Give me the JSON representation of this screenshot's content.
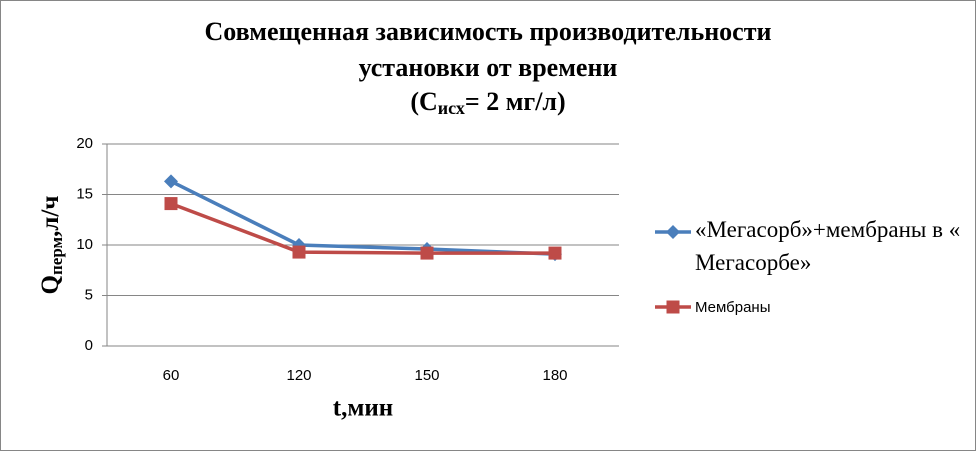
{
  "chart_data": {
    "type": "line",
    "title_lines": [
      "Совмещенная зависимость производительности",
      "установки от времени"
    ],
    "title_formula": {
      "prefix": "(C",
      "subscript": "исх",
      "suffix": "= 2 мг/л)"
    },
    "y_label": {
      "prefix": "Q",
      "subscript": "перм",
      "suffix": ",л/ч"
    },
    "x_label": "t,мин",
    "categories": [
      "60",
      "120",
      "150",
      "180"
    ],
    "series": [
      {
        "name": "«Мегасорб»+мембраны в «Мегасорбе»",
        "color": "#4a7ebb",
        "marker": "diamond",
        "values": [
          16.3,
          10,
          9.6,
          9.1
        ]
      },
      {
        "name": "Мембраны",
        "color": "#be4b48",
        "marker": "square",
        "values": [
          14.1,
          9.3,
          9.2,
          9.2
        ]
      }
    ],
    "ylim": [
      0,
      20
    ],
    "yticks": [
      0,
      5,
      10,
      15,
      20
    ],
    "grid": true,
    "legend": "right"
  }
}
